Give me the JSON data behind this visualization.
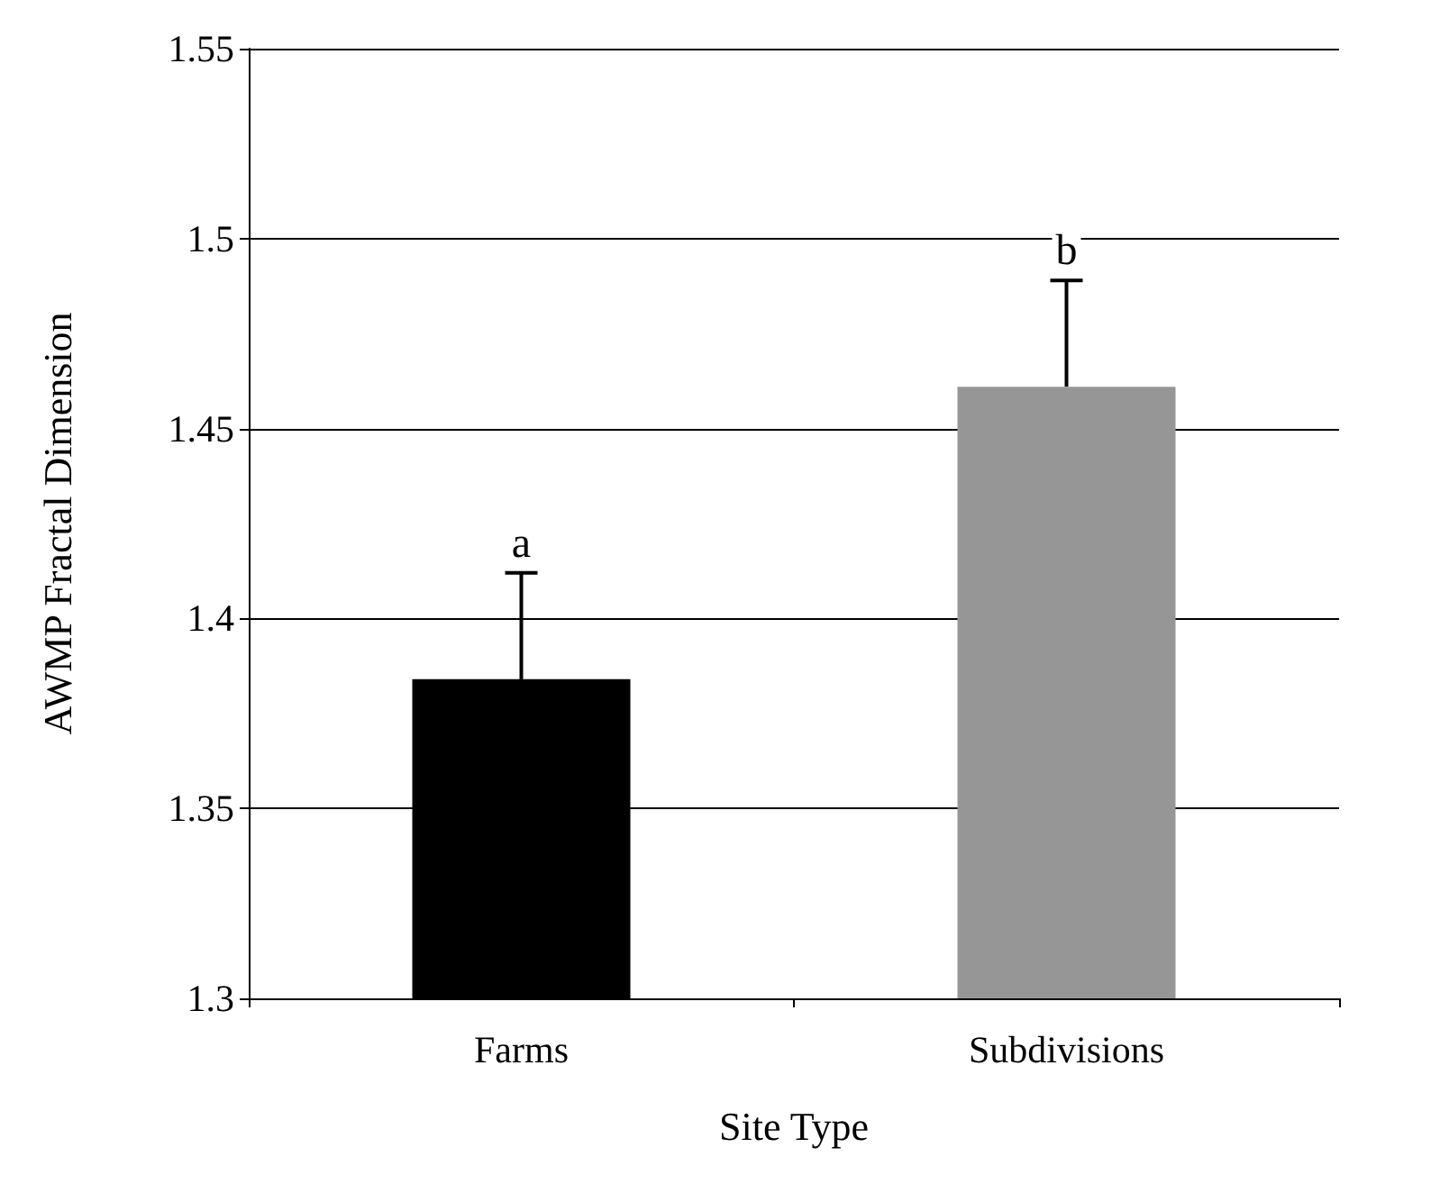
{
  "chart_data": {
    "type": "bar",
    "xlabel": "Site Type",
    "ylabel": "AWMP Fractal Dimension",
    "categories": [
      "Farms",
      "Subdivisions"
    ],
    "values": [
      1.384,
      1.461
    ],
    "colors": [
      "#000000",
      "#969696"
    ],
    "errors": [
      [
        1.384,
        1.412
      ],
      [
        1.461,
        1.489
      ]
    ],
    "ylim": [
      1.3,
      1.55
    ],
    "yticks": [
      1.3,
      1.35,
      1.4,
      1.45,
      1.5,
      1.55
    ],
    "grid": "y",
    "annotations": [
      "a",
      "b"
    ]
  }
}
